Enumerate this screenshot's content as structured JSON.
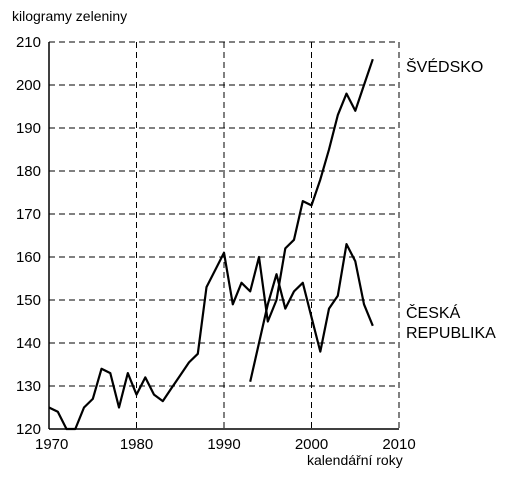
{
  "chart_data": {
    "type": "line",
    "title": "",
    "ylabel": "kilogramy zeleniny",
    "xlabel": "kalendářní roky",
    "xlim": [
      1970,
      2010
    ],
    "ylim": [
      120,
      210
    ],
    "xticks": [
      1970,
      1980,
      1990,
      2000,
      2010
    ],
    "yticks": [
      120,
      130,
      140,
      150,
      160,
      170,
      180,
      190,
      200,
      210
    ],
    "grid": true,
    "grid_style": "dashed",
    "legend": "direct labels at right end of lines",
    "series": [
      {
        "name": "ŠVÉDSKO",
        "label_lines": [
          "ŠVÉDSKO"
        ],
        "color": "#000000",
        "x": [
          1970,
          1971,
          1972,
          1973,
          1974,
          1975,
          1976,
          1977,
          1978,
          1979,
          1980,
          1981,
          1982,
          1983,
          1984,
          1985,
          1986,
          1987,
          1988,
          1989,
          1990,
          1991,
          1992,
          1993,
          1994,
          1995,
          1996,
          1997,
          1998,
          1999,
          2000,
          2001,
          2002,
          2003,
          2004,
          2005,
          2006,
          2007
        ],
        "y": [
          125,
          124,
          120,
          120,
          125,
          127,
          134,
          133,
          125,
          133,
          128,
          132,
          128,
          126.5,
          129.5,
          132.5,
          135.5,
          137.5,
          153,
          157,
          161,
          149,
          154,
          152,
          160,
          145,
          150,
          162,
          164,
          173,
          172,
          178,
          185,
          193,
          198,
          194,
          200,
          206
        ]
      },
      {
        "name": "ČESKÁ REPUBLIKA",
        "label_lines": [
          "ČESKÁ",
          "REPUBLIKA"
        ],
        "color": "#000000",
        "x": [
          1993,
          1994,
          1995,
          1996,
          1997,
          1998,
          1999,
          2000,
          2001,
          2002,
          2003,
          2004,
          2005,
          2006,
          2007
        ],
        "y": [
          131,
          140,
          149,
          156,
          148,
          152,
          154,
          146,
          138,
          148,
          151,
          163,
          159,
          149,
          144
        ]
      }
    ]
  }
}
